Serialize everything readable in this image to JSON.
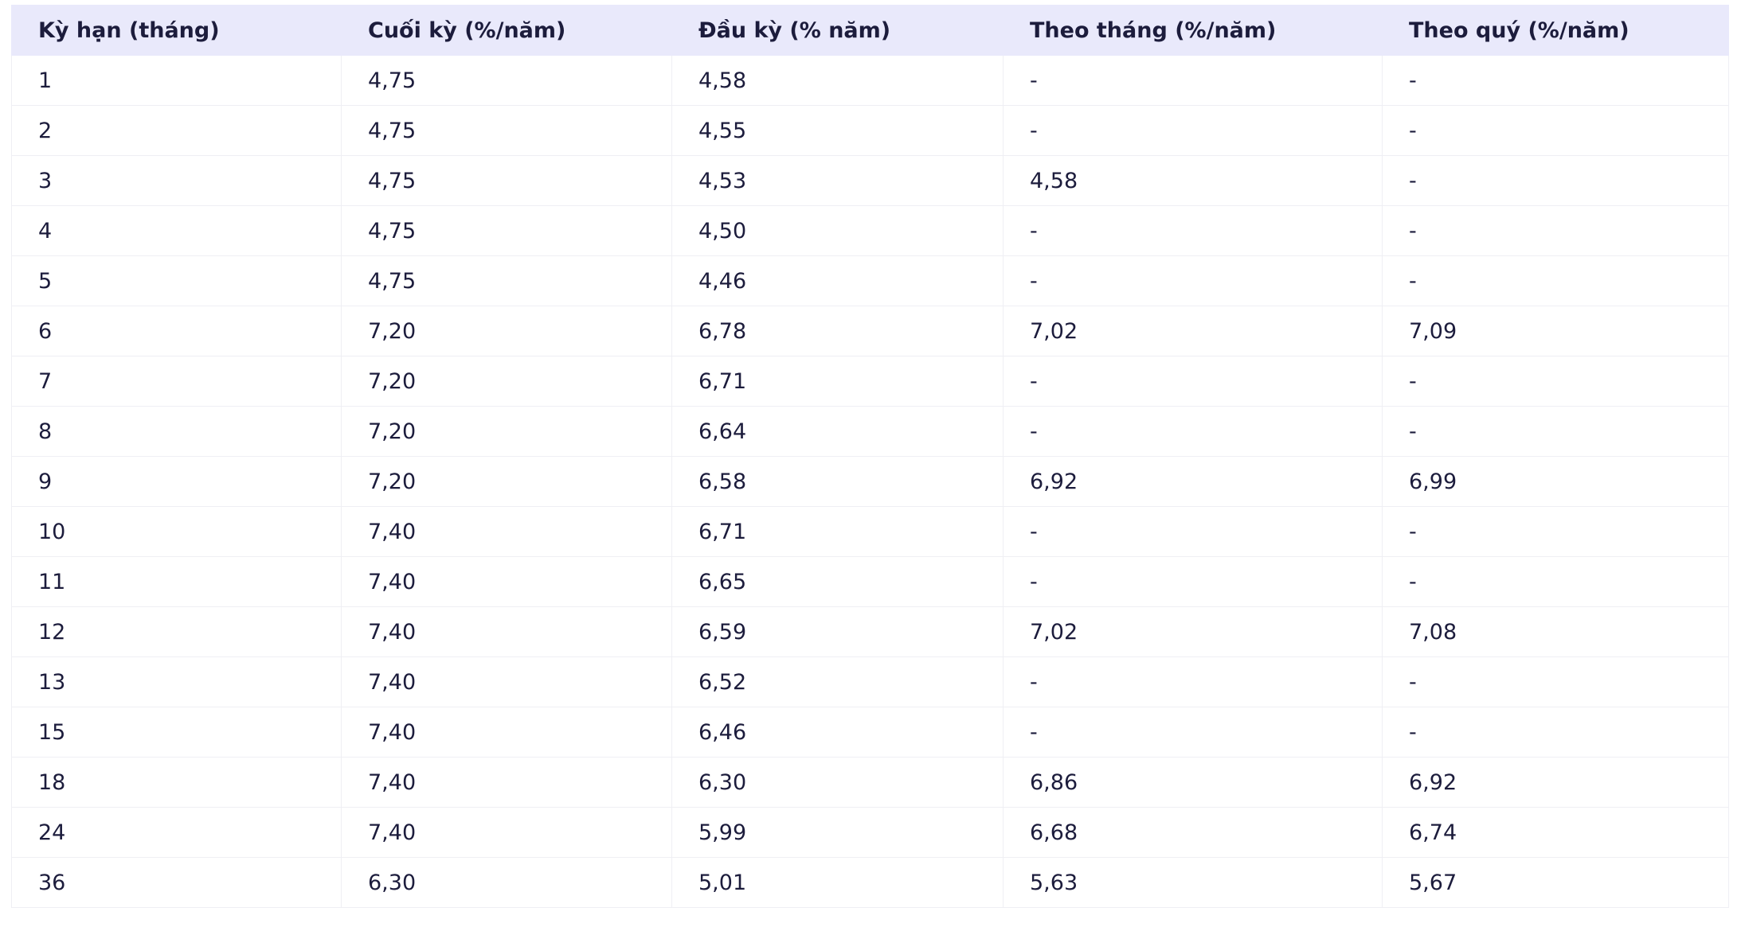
{
  "table": {
    "header": [
      "Kỳ hạn (tháng)",
      "Cuối kỳ (%/năm)",
      "Đầu kỳ (% năm)",
      "Theo tháng (%/năm)",
      "Theo quý (%/năm)"
    ],
    "rows": [
      [
        "1",
        "4,75",
        "4,58",
        "-",
        "-"
      ],
      [
        "2",
        "4,75",
        "4,55",
        "-",
        "-"
      ],
      [
        "3",
        "4,75",
        "4,53",
        "4,58",
        "-"
      ],
      [
        "4",
        "4,75",
        "4,50",
        "-",
        "-"
      ],
      [
        "5",
        "4,75",
        "4,46",
        "-",
        "-"
      ],
      [
        "6",
        "7,20",
        "6,78",
        "7,02",
        "7,09"
      ],
      [
        "7",
        "7,20",
        "6,71",
        "-",
        "-"
      ],
      [
        "8",
        "7,20",
        "6,64",
        "-",
        "-"
      ],
      [
        "9",
        "7,20",
        "6,58",
        "6,92",
        "6,99"
      ],
      [
        "10",
        "7,40",
        "6,71",
        "-",
        "-"
      ],
      [
        "11",
        "7,40",
        "6,65",
        "-",
        "-"
      ],
      [
        "12",
        "7,40",
        "6,59",
        "7,02",
        "7,08"
      ],
      [
        "13",
        "7,40",
        "6,52",
        "-",
        "-"
      ],
      [
        "15",
        "7,40",
        "6,46",
        "-",
        "-"
      ],
      [
        "18",
        "7,40",
        "6,30",
        "6,86",
        "6,92"
      ],
      [
        "24",
        "7,40",
        "5,99",
        "6,68",
        "6,74"
      ],
      [
        "36",
        "6,30",
        "5,01",
        "5,63",
        "5,67"
      ]
    ]
  }
}
